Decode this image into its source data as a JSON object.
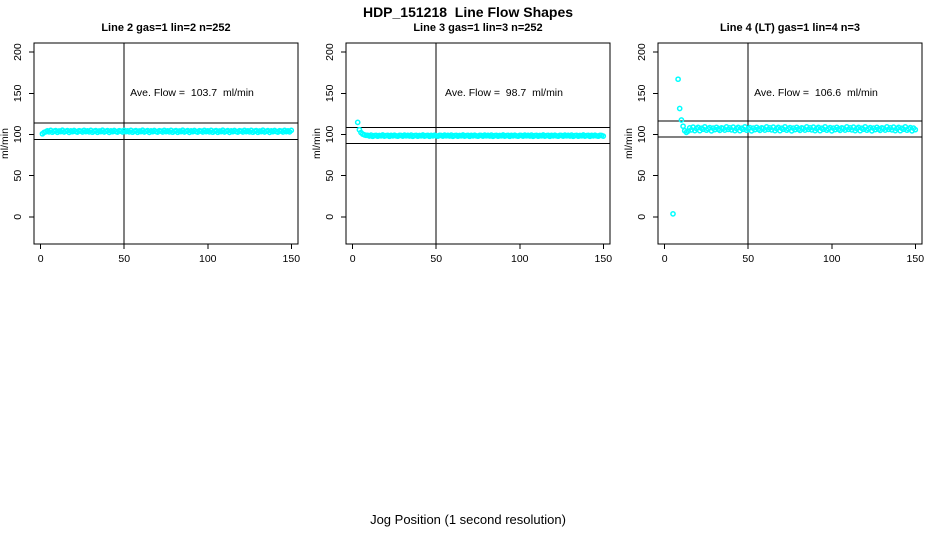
{
  "page": {
    "title": "HDP_151218  Line Flow Shapes",
    "x_axis_label": "Jog Position (1 second resolution)"
  },
  "chart_data": [
    {
      "type": "scatter",
      "title": "Line 2 gas=1 lin=2 n=252",
      "annotation": "Ave. Flow =  103.7  ml/min",
      "ave_flow": 103.7,
      "n": 252,
      "y_label": "ml/min",
      "x_ticks": [
        0,
        50,
        100,
        150
      ],
      "y_ticks": [
        0,
        50,
        100,
        150,
        200
      ],
      "xlim": [
        -4,
        154
      ],
      "ylim": [
        -33,
        211
      ],
      "ref_line_upper": 113.7,
      "ref_line_lower": 93.7,
      "vline_x": 50,
      "marker_color": "#00FFFF",
      "line_color": "#000000",
      "series": {
        "x_start": 1,
        "x_step": 1,
        "y": [
          100.8,
          102.3,
          103.2,
          104.4,
          103.1,
          104.9,
          102.7,
          104.0,
          104.7,
          102.6,
          104.2,
          103.5,
          105.1,
          102.9,
          103.9,
          104.6,
          102.5,
          104.3,
          103.3,
          104.8,
          103.6,
          102.8,
          104.5,
          104.1,
          103.0,
          105.0,
          103.4,
          104.4,
          103.1,
          104.9,
          102.7,
          104.0,
          104.7,
          102.6,
          104.2,
          103.5,
          105.1,
          102.9,
          103.9,
          104.6,
          102.5,
          104.3,
          103.3,
          104.8,
          103.6,
          102.8,
          104.5,
          104.1,
          103.0,
          105.0,
          103.4,
          104.4,
          103.1,
          104.9,
          102.7,
          104.0,
          104.7,
          102.6,
          104.2,
          103.5,
          105.1,
          102.9,
          103.9,
          104.6,
          102.5,
          104.3,
          103.3,
          104.8,
          103.6,
          102.8,
          104.5,
          104.1,
          103.0,
          105.0,
          103.4,
          104.4,
          103.1,
          104.9,
          102.7,
          104.0,
          104.7,
          102.6,
          104.2,
          103.5,
          105.1,
          102.9,
          103.9,
          104.6,
          102.5,
          104.3,
          103.3,
          104.8,
          103.6,
          102.8,
          104.5,
          104.1,
          103.0,
          105.0,
          103.4,
          104.4,
          103.1,
          104.9,
          102.7,
          104.0,
          104.7,
          102.6,
          104.2,
          103.5,
          105.1,
          102.9,
          103.9,
          104.6,
          102.5,
          104.3,
          103.3,
          104.8,
          103.6,
          102.8,
          104.5,
          104.1,
          103.0,
          105.0,
          103.4,
          104.4,
          103.1,
          104.9,
          102.7,
          104.0,
          104.7,
          102.6,
          104.2,
          103.5,
          105.1,
          102.9,
          103.9,
          104.6,
          102.5,
          104.3,
          103.3,
          104.8,
          103.6,
          102.8,
          104.5,
          104.1,
          103.0,
          105.0,
          103.4,
          104.4,
          103.1,
          104.9
        ]
      }
    },
    {
      "type": "scatter",
      "title": "Line 3 gas=1 lin=3 n=252",
      "annotation": "Ave. Flow =  98.7  ml/min",
      "ave_flow": 98.7,
      "n": 252,
      "y_label": "ml/min",
      "x_ticks": [
        0,
        50,
        100,
        150
      ],
      "y_ticks": [
        0,
        50,
        100,
        150,
        200
      ],
      "xlim": [
        -4,
        154
      ],
      "ylim": [
        -33,
        211
      ],
      "ref_line_upper": 108.7,
      "ref_line_lower": 88.7,
      "vline_x": 50,
      "marker_color": "#00FFFF",
      "line_color": "#000000",
      "series": {
        "x_start": 3,
        "x_step": 1,
        "y": [
          114.6,
          105.8,
          102.2,
          100.4,
          99.4,
          99.0,
          98.9,
          98.1,
          99.2,
          97.8,
          98.6,
          99.0,
          97.9,
          98.7,
          98.3,
          99.3,
          98.0,
          98.6,
          99.0,
          97.7,
          98.8,
          98.2,
          99.1,
          98.4,
          97.9,
          98.9,
          98.7,
          98.0,
          99.2,
          98.3,
          98.9,
          98.1,
          99.2,
          97.8,
          98.6,
          99.0,
          97.9,
          98.7,
          98.3,
          99.3,
          98.0,
          98.6,
          99.0,
          97.7,
          98.8,
          98.2,
          99.1,
          98.4,
          97.9,
          98.9,
          98.7,
          98.0,
          99.2,
          98.3,
          98.9,
          98.1,
          99.2,
          97.8,
          98.6,
          99.0,
          97.9,
          98.7,
          98.3,
          99.3,
          98.0,
          98.6,
          99.0,
          97.7,
          98.8,
          98.2,
          99.1,
          98.4,
          97.9,
          98.9,
          98.7,
          98.0,
          99.2,
          98.3,
          98.9,
          98.1,
          99.2,
          97.8,
          98.6,
          99.0,
          97.9,
          98.7,
          98.3,
          99.3,
          98.0,
          98.6,
          99.0,
          97.7,
          98.8,
          98.2,
          99.1,
          98.4,
          97.9,
          98.9,
          98.7,
          98.0,
          99.2,
          98.3,
          98.9,
          98.1,
          99.2,
          97.8,
          98.6,
          99.0,
          97.9,
          98.7,
          98.3,
          99.3,
          98.0,
          98.6,
          99.0,
          97.7,
          98.8,
          98.2,
          99.1,
          98.4,
          97.9,
          98.9,
          98.7,
          98.0,
          99.2,
          98.3,
          98.9,
          98.1,
          99.2,
          97.8,
          98.6,
          99.0,
          97.9,
          98.7,
          98.3,
          99.3,
          98.0,
          98.6,
          99.0,
          97.7,
          98.8,
          98.2,
          99.1,
          98.4,
          97.9,
          98.9,
          98.7,
          98.0
        ]
      }
    },
    {
      "type": "scatter",
      "title": "Line 4 (LT) gas=1 lin=4 n=3",
      "annotation": "Ave. Flow =  106.6  ml/min",
      "ave_flow": 106.6,
      "n": 3,
      "y_label": "ml/min",
      "x_ticks": [
        0,
        50,
        100,
        150
      ],
      "y_ticks": [
        0,
        50,
        100,
        150,
        200
      ],
      "xlim": [
        -4,
        154
      ],
      "ylim": [
        -33,
        211
      ],
      "ref_line_upper": 116.6,
      "ref_line_lower": 96.6,
      "vline_x": 50,
      "marker_color": "#00FFFF",
      "line_color": "#000000",
      "series": {
        "x_start": 5,
        "x_step": 1,
        "y": [
          3.5,
          null,
          null,
          167.0,
          131.5,
          117.5,
          110.0,
          104.5,
          102.5,
          104.0,
          107.9,
          105.5,
          108.9,
          104.7,
          107.2,
          108.5,
          104.5,
          107.6,
          106.2,
          109.3,
          105.1,
          107.0,
          108.3,
          104.3,
          107.7,
          105.8,
          108.7,
          106.4,
          104.9,
          108.1,
          107.4,
          105.3,
          109.1,
          106.1,
          107.9,
          105.5,
          108.9,
          104.7,
          107.2,
          108.5,
          104.5,
          107.6,
          106.2,
          109.3,
          105.1,
          107.0,
          108.3,
          104.3,
          107.7,
          105.8,
          108.7,
          106.4,
          104.9,
          108.1,
          107.4,
          105.3,
          109.1,
          106.1,
          107.9,
          105.5,
          108.9,
          104.7,
          107.2,
          108.5,
          104.5,
          107.6,
          106.2,
          109.3,
          105.1,
          107.0,
          108.3,
          104.3,
          107.7,
          105.8,
          108.7,
          106.4,
          104.9,
          108.1,
          107.4,
          105.3,
          109.1,
          106.1,
          107.9,
          105.5,
          108.9,
          104.7,
          107.2,
          108.5,
          104.5,
          107.6,
          106.2,
          109.3,
          105.1,
          107.0,
          108.3,
          104.3,
          107.7,
          105.8,
          108.7,
          106.4,
          104.9,
          108.1,
          107.4,
          105.3,
          109.1,
          106.1,
          107.9,
          105.5,
          108.9,
          104.7,
          107.2,
          108.5,
          104.5,
          107.6,
          106.2,
          109.3,
          105.1,
          107.0,
          108.3,
          104.3,
          107.7,
          105.8,
          108.7,
          106.4,
          104.9,
          108.1,
          107.4,
          105.3,
          109.1,
          106.1,
          107.9,
          105.5,
          108.9,
          104.7,
          107.2,
          108.5,
          104.5,
          107.6,
          106.2,
          109.3,
          105.1,
          107.0,
          108.3,
          104.3,
          107.7,
          105.8
        ]
      }
    }
  ]
}
